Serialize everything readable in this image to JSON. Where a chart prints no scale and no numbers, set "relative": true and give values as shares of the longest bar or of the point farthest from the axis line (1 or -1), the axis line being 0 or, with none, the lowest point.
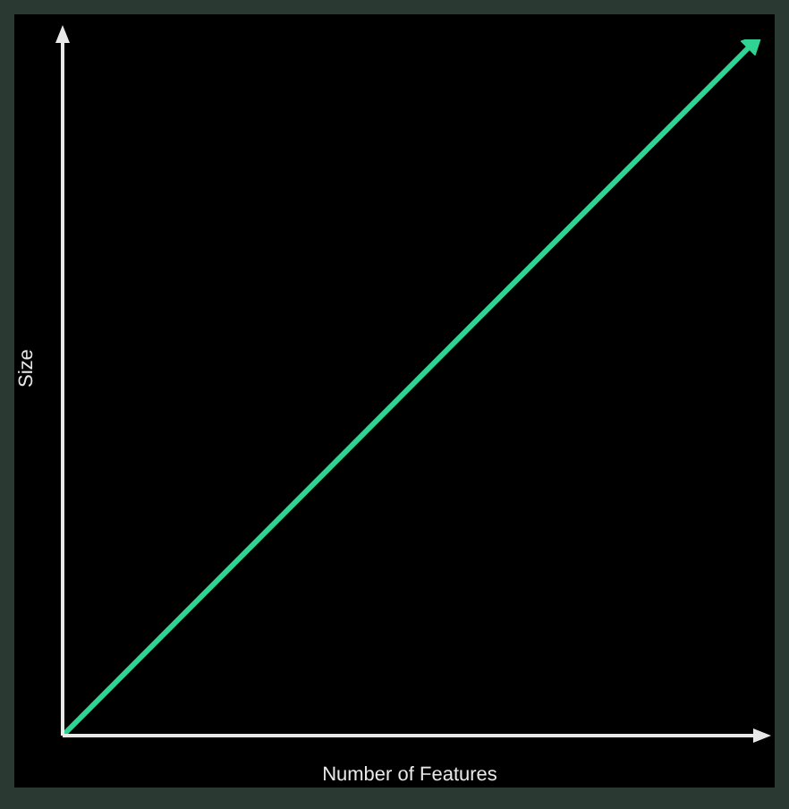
{
  "chart_data": {
    "type": "line",
    "xlabel": "Number of Features",
    "ylabel": "Size",
    "categories": [
      null,
      null
    ],
    "relative": true,
    "series": [
      {
        "color": "#2fd393",
        "values": [
          0,
          1
        ]
      }
    ],
    "marker": "none",
    "line_style": "solid"
  }
}
